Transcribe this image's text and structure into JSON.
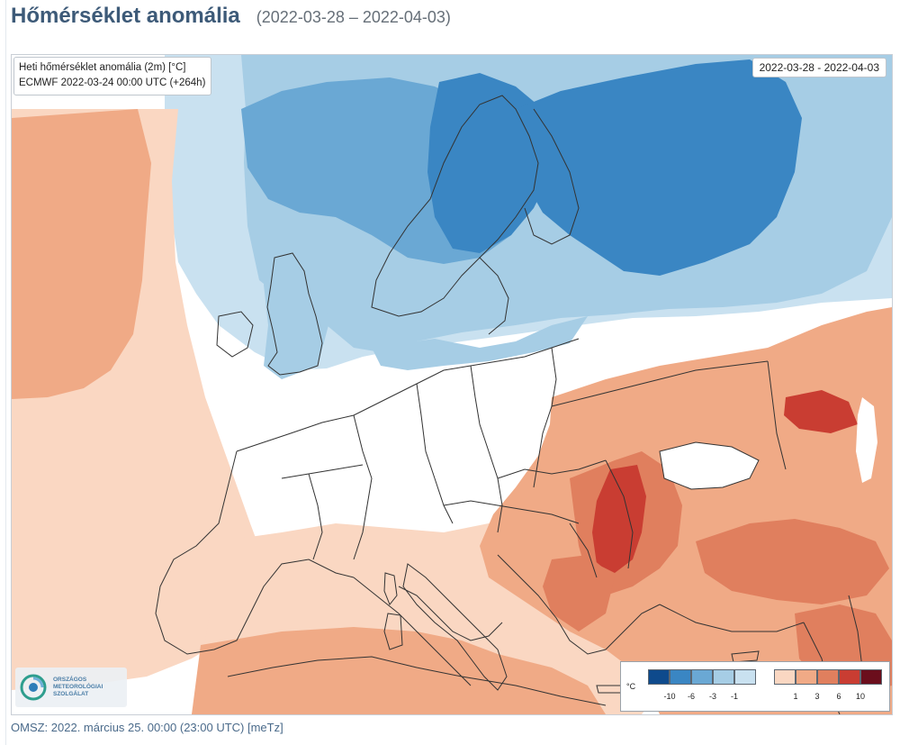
{
  "header": {
    "title": "Hőmérséklet anomália",
    "period": "(2022-03-28 – 2022-04-03)"
  },
  "map": {
    "info_line1": "Heti hőmérséklet anomália (2m) [°C]",
    "info_line2": "ECMWF 2022-03-24 00:00 UTC (+264h)",
    "date_range": "2022-03-28 - 2022-04-03",
    "background_color": "#ffffff",
    "colors": {
      "cold_1": "#c9e1f0",
      "cold_2": "#a6cde5",
      "cold_3": "#6aa8d4",
      "cold_4": "#3a86c3",
      "cold_5": "#0e4a8c",
      "warm_1": "#fad7c2",
      "warm_2": "#f0aa86",
      "warm_3": "#e07f5e",
      "warm_4": "#c93d32",
      "warm_5": "#6b0e1c",
      "border_line": "#333333"
    }
  },
  "logo": {
    "name": "omsz-logo",
    "line1": "ORSZÁGOS",
    "line2": "METEOROLÓGIAI",
    "line3": "SZOLGÁLAT"
  },
  "legend": {
    "unit": "°C",
    "cold_colors": [
      "#0e4a8c",
      "#3a86c3",
      "#6aa8d4",
      "#a6cde5",
      "#c9e1f0"
    ],
    "warm_colors": [
      "#fad7c2",
      "#f0aa86",
      "#e07f5e",
      "#c93d32",
      "#6b0e1c"
    ],
    "cold_ticks": [
      "-10",
      "-6",
      "-3",
      "-1"
    ],
    "warm_ticks": [
      "1",
      "3",
      "6",
      "10"
    ]
  },
  "footer": {
    "text": "OMSZ: 2022. március 25. 00:00 (23:00  UTC)  [meTz]"
  }
}
